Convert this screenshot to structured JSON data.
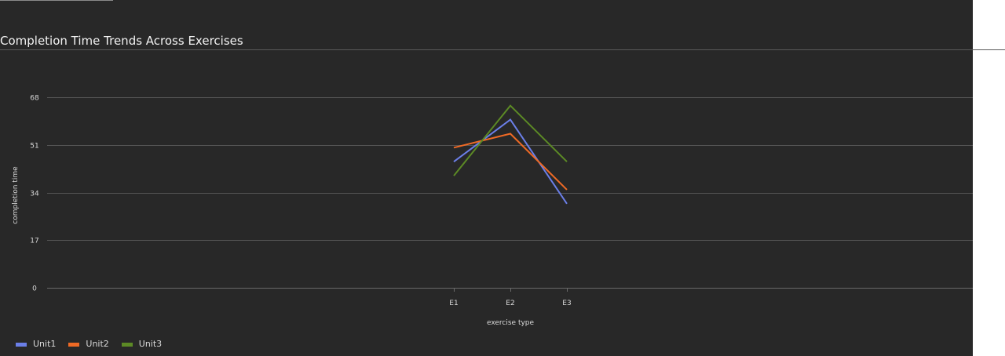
{
  "title": "Completion Time Trends Across Exercises",
  "colors": {
    "background": "#282828",
    "grid": "#555555",
    "text": "#d9d9d9"
  },
  "chart_data": {
    "type": "line",
    "title": "Completion Time Trends Across Exercises",
    "xlabel": "exercise type",
    "ylabel": "completion time",
    "categories": [
      "E1",
      "E2",
      "E3"
    ],
    "yticks": [
      0,
      17,
      34,
      51,
      68
    ],
    "ylim": [
      0,
      68
    ],
    "grid": true,
    "legend_position": "bottom-left",
    "series": [
      {
        "name": "Unit1",
        "color": "#6b7fe8",
        "values": [
          45,
          60,
          30
        ]
      },
      {
        "name": "Unit2",
        "color": "#ef6a25",
        "values": [
          50,
          55,
          35
        ]
      },
      {
        "name": "Unit3",
        "color": "#5c8a25",
        "values": [
          40,
          65,
          45
        ]
      }
    ]
  }
}
